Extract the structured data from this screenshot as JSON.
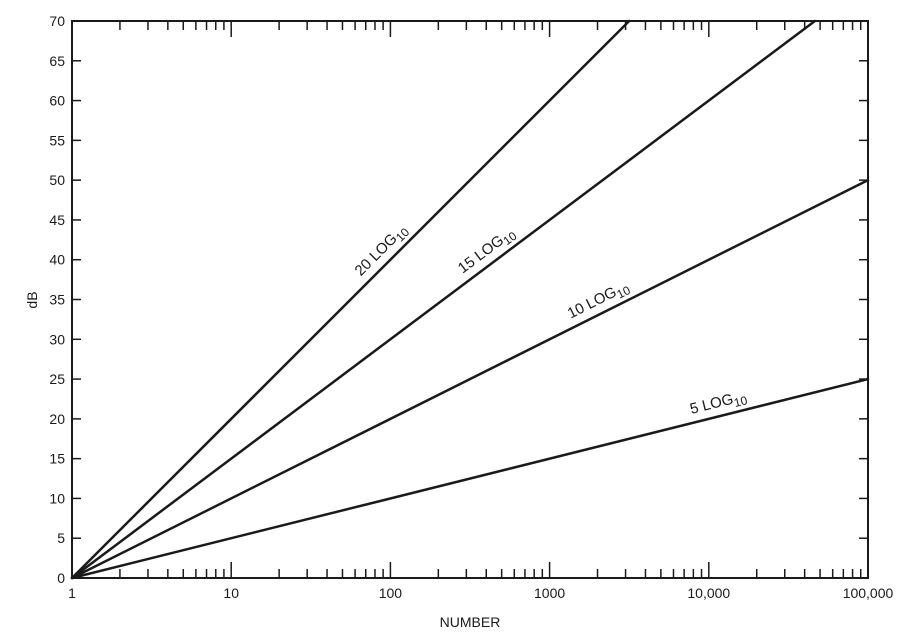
{
  "chart_data": {
    "type": "line",
    "xlabel": "NUMBER",
    "ylabel": "dB",
    "xscale": "log",
    "xlim": [
      1,
      100000
    ],
    "ylim": [
      0,
      70
    ],
    "x_ticks": [
      {
        "value": 1,
        "label": "1"
      },
      {
        "value": 10,
        "label": "10"
      },
      {
        "value": 100,
        "label": "100"
      },
      {
        "value": 1000,
        "label": "1000"
      },
      {
        "value": 10000,
        "label": "10,000"
      },
      {
        "value": 100000,
        "label": "100,000"
      }
    ],
    "y_ticks": [
      {
        "value": 0,
        "label": "0"
      },
      {
        "value": 5,
        "label": "5"
      },
      {
        "value": 10,
        "label": "10"
      },
      {
        "value": 15,
        "label": "15"
      },
      {
        "value": 20,
        "label": "20"
      },
      {
        "value": 25,
        "label": "25"
      },
      {
        "value": 30,
        "label": "30"
      },
      {
        "value": 35,
        "label": "35"
      },
      {
        "value": 40,
        "label": "40"
      },
      {
        "value": 45,
        "label": "45"
      },
      {
        "value": 50,
        "label": "50"
      },
      {
        "value": 55,
        "label": "55"
      },
      {
        "value": 60,
        "label": "60"
      },
      {
        "value": 65,
        "label": "65"
      },
      {
        "value": 70,
        "label": "70"
      }
    ],
    "grid": false,
    "series": [
      {
        "name": "20 LOG10",
        "label_main": "20 LOG",
        "label_sub": "10",
        "coefficient": 20,
        "x": [
          1,
          3162
        ],
        "y": [
          0,
          70
        ],
        "label_at_x": 100
      },
      {
        "name": "15 LOG10",
        "label_main": "15 LOG",
        "label_sub": "10",
        "coefficient": 15,
        "x": [
          1,
          46416
        ],
        "y": [
          0,
          70
        ],
        "label_at_x": 450
      },
      {
        "name": "10 LOG10",
        "label_main": "10 LOG",
        "label_sub": "10",
        "coefficient": 10,
        "x": [
          1,
          100000
        ],
        "y": [
          0,
          50
        ],
        "label_at_x": 2200
      },
      {
        "name": "5 LOG10",
        "label_main": "5 LOG",
        "label_sub": "10",
        "coefficient": 5,
        "x": [
          1,
          100000
        ],
        "y": [
          0,
          25
        ],
        "label_at_x": 12000
      }
    ]
  }
}
